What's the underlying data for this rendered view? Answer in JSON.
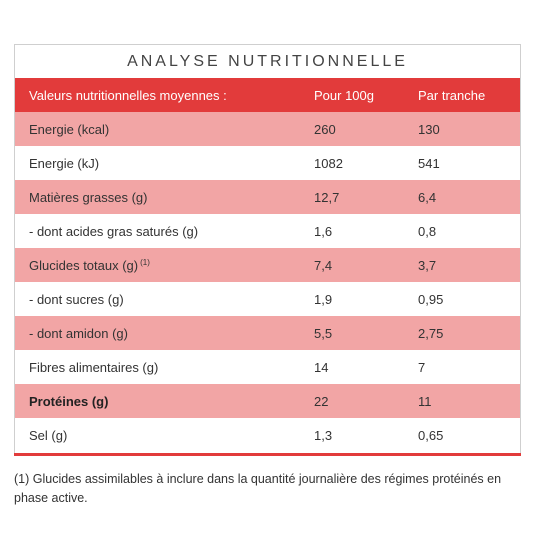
{
  "title": "ANALYSE NUTRITIONNELLE",
  "colors": {
    "accent": "#e23b3b",
    "row_alt": "#f2a5a5"
  },
  "table": {
    "headers": [
      "Valeurs nutritionnelles moyennes :",
      "Pour 100g",
      "Par tranche"
    ],
    "rows": [
      {
        "label": "Energie (kcal)",
        "note": "",
        "per100": "260",
        "slice": "130",
        "style": "pink",
        "bold": false
      },
      {
        "label": "Energie (kJ)",
        "note": "",
        "per100": "1082",
        "slice": "541",
        "style": "white",
        "bold": false
      },
      {
        "label": "Matières grasses (g)",
        "note": "",
        "per100": "12,7",
        "slice": "6,4",
        "style": "pink",
        "bold": false
      },
      {
        "label": "- dont acides gras saturés (g)",
        "note": "",
        "per100": "1,6",
        "slice": "0,8",
        "style": "white",
        "bold": false
      },
      {
        "label": "Glucides totaux (g)",
        "note": "(1)",
        "per100": "7,4",
        "slice": "3,7",
        "style": "pink",
        "bold": false
      },
      {
        "label": "- dont sucres (g)",
        "note": "",
        "per100": "1,9",
        "slice": "0,95",
        "style": "white",
        "bold": false
      },
      {
        "label": "- dont amidon (g)",
        "note": "",
        "per100": "5,5",
        "slice": "2,75",
        "style": "pink",
        "bold": false
      },
      {
        "label": "Fibres alimentaires (g)",
        "note": "",
        "per100": "14",
        "slice": "7",
        "style": "white",
        "bold": false
      },
      {
        "label": "Protéines (g)",
        "note": "",
        "per100": "22",
        "slice": "11",
        "style": "pink",
        "bold": true
      },
      {
        "label": "Sel (g)",
        "note": "",
        "per100": "1,3",
        "slice": "0,65",
        "style": "white",
        "bold": false
      }
    ]
  },
  "footnote": "(1) Glucides assimilables à inclure dans la quantité journalière des régimes protéinés en phase active."
}
